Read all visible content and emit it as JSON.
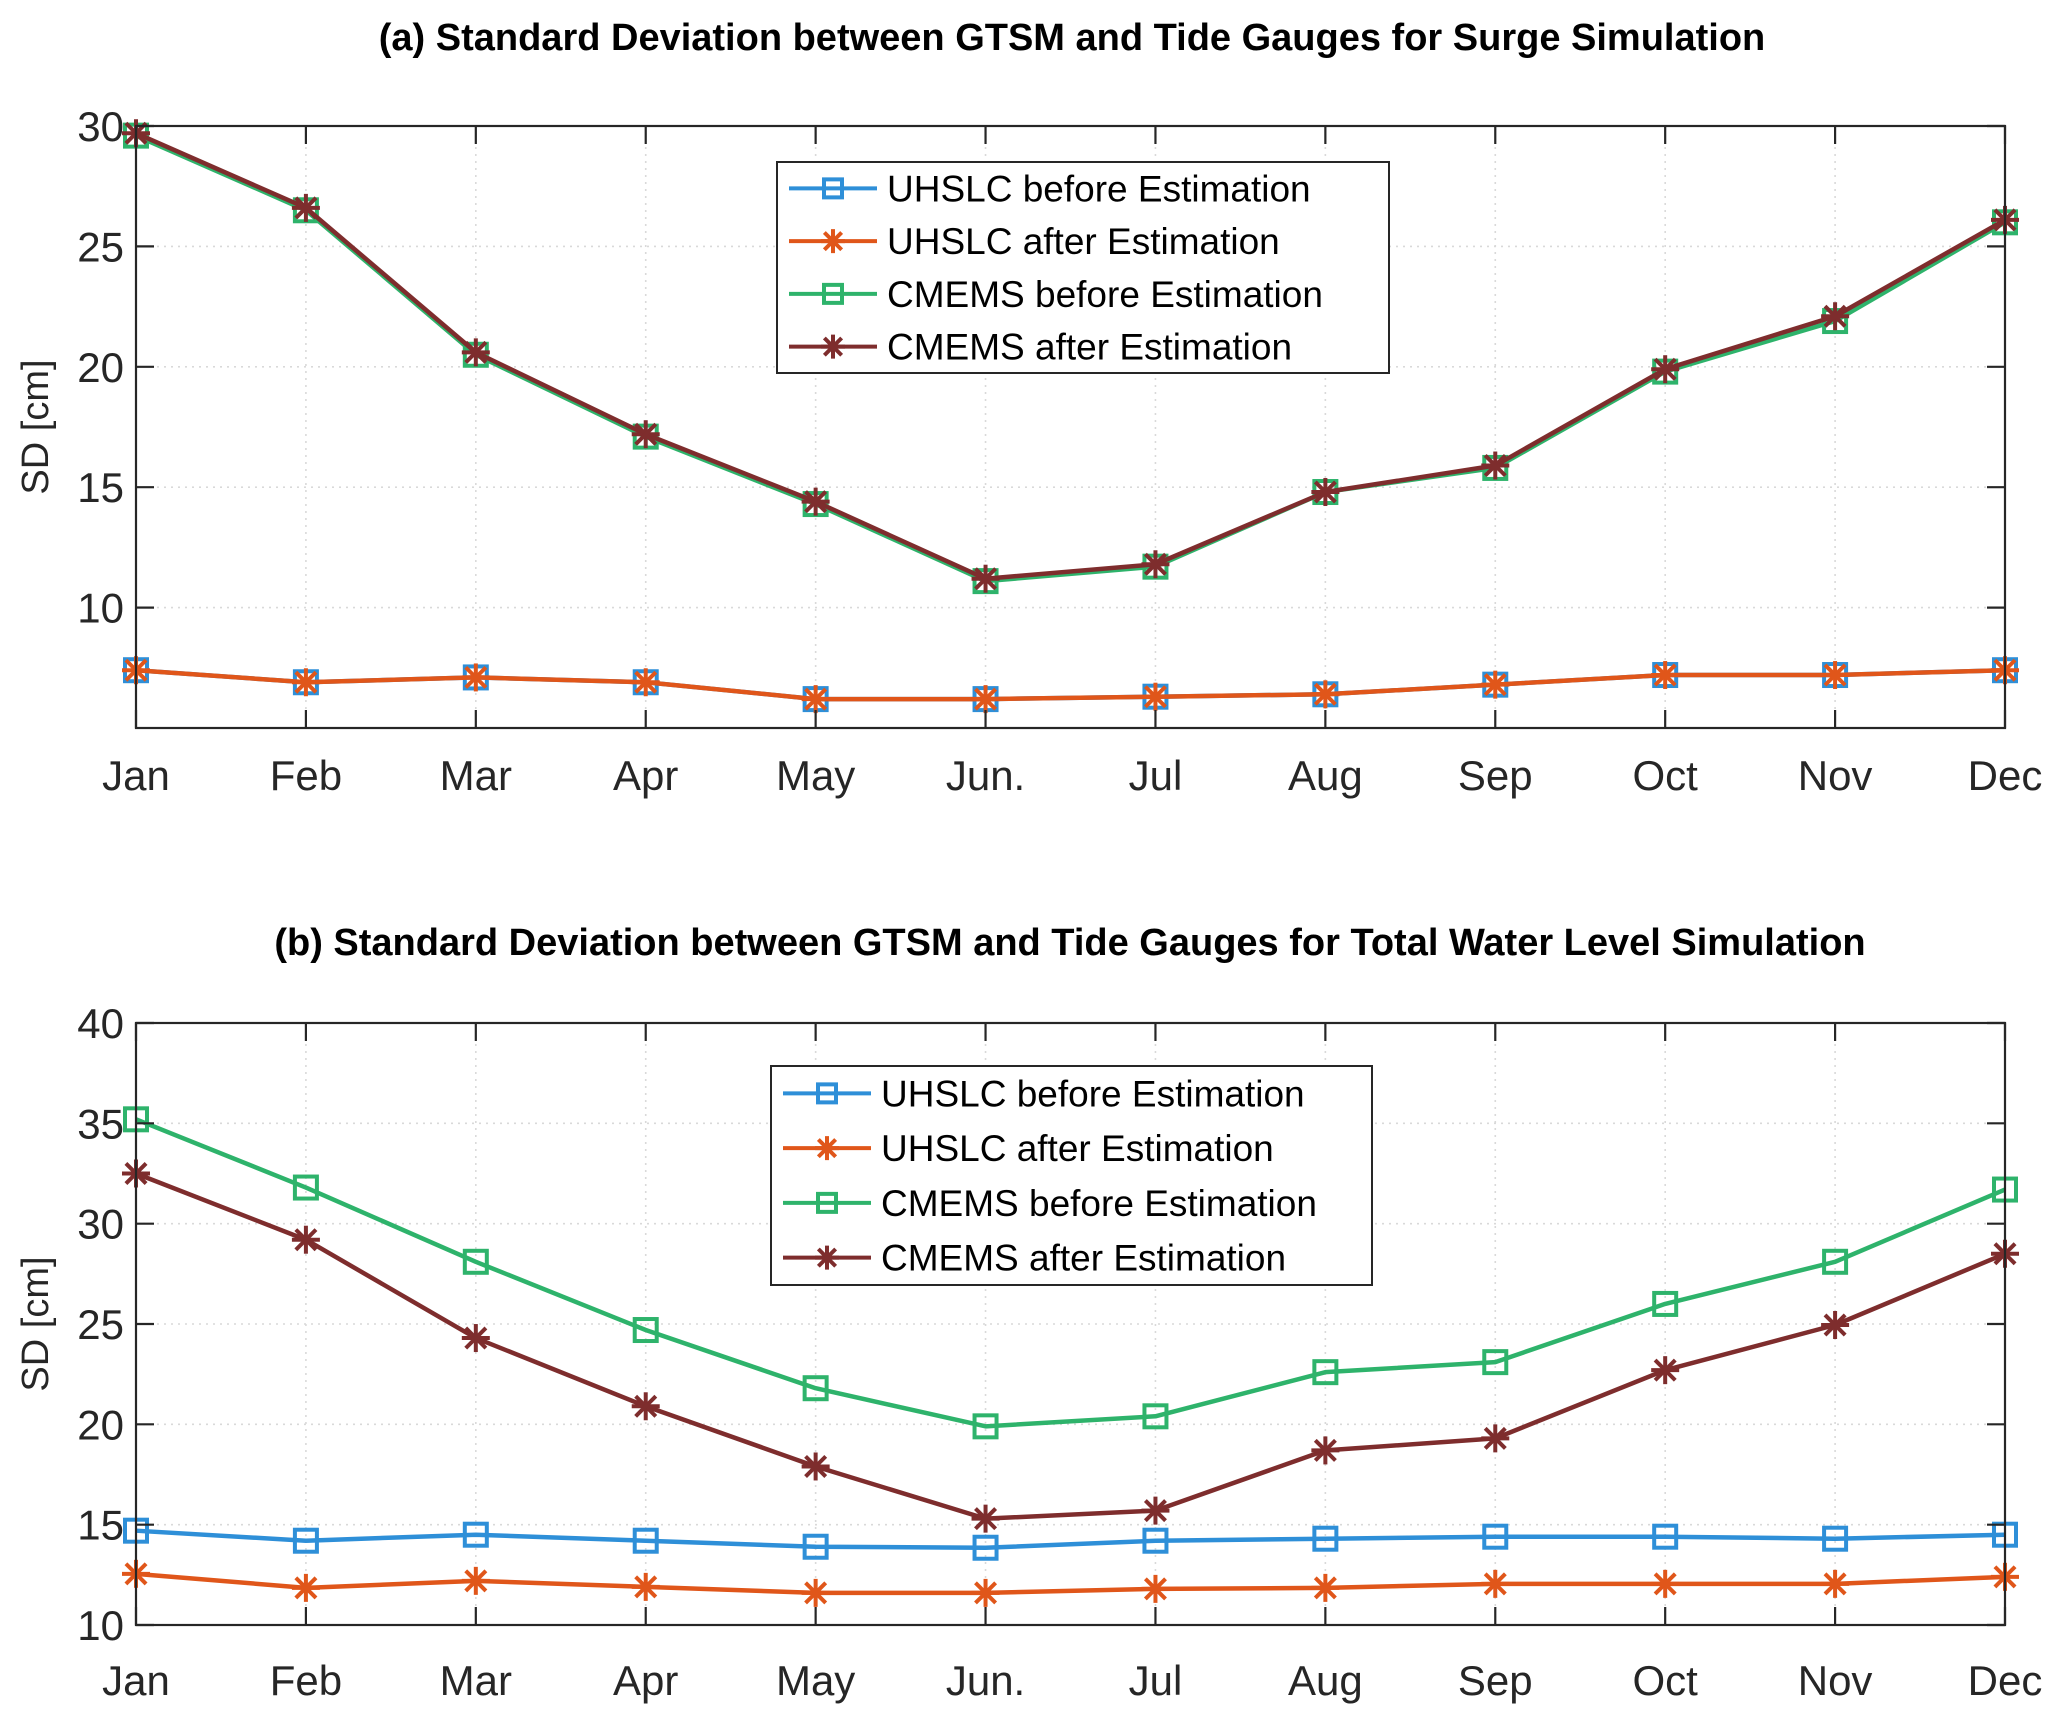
{
  "chart_data": [
    {
      "type": "line",
      "title": "(a) Standard Deviation between GTSM and Tide Gauges for Surge Simulation",
      "xlabel": "",
      "ylabel": "SD [cm]",
      "categories": [
        "Jan",
        "Feb",
        "Mar",
        "Apr",
        "May",
        "Jun.",
        "Jul",
        "Aug",
        "Sep",
        "Oct",
        "Nov",
        "Dec"
      ],
      "ylim": [
        5,
        30
      ],
      "yticks": [
        10,
        15,
        20,
        25,
        30
      ],
      "grid": true,
      "legend_position": "top-center",
      "series": [
        {
          "name": "UHSLC before Estimation",
          "color": "#2e8fd8",
          "marker": "square",
          "values": [
            7.4,
            6.9,
            7.1,
            6.9,
            6.2,
            6.2,
            6.3,
            6.4,
            6.8,
            7.2,
            7.2,
            7.4
          ]
        },
        {
          "name": "UHSLC after Estimation",
          "color": "#e0561a",
          "marker": "asterisk",
          "values": [
            7.4,
            6.9,
            7.1,
            6.9,
            6.2,
            6.2,
            6.3,
            6.4,
            6.8,
            7.2,
            7.2,
            7.4
          ]
        },
        {
          "name": "CMEMS before Estimation",
          "color": "#2eb36b",
          "marker": "square",
          "values": [
            29.6,
            26.5,
            20.5,
            17.1,
            14.3,
            11.1,
            11.7,
            14.8,
            15.8,
            19.8,
            21.9,
            26.0
          ]
        },
        {
          "name": "CMEMS after Estimation",
          "color": "#7e2d2d",
          "marker": "asterisk",
          "values": [
            29.7,
            26.6,
            20.6,
            17.2,
            14.4,
            11.2,
            11.8,
            14.8,
            15.9,
            19.9,
            22.1,
            26.1
          ]
        }
      ]
    },
    {
      "type": "line",
      "title": "(b) Standard Deviation between GTSM and Tide Gauges for Total Water Level Simulation",
      "xlabel": "",
      "ylabel": "SD [cm]",
      "categories": [
        "Jan",
        "Feb",
        "Mar",
        "Apr",
        "May",
        "Jun.",
        "Jul",
        "Aug",
        "Sep",
        "Oct",
        "Nov",
        "Dec"
      ],
      "ylim": [
        10,
        40
      ],
      "yticks": [
        10,
        15,
        20,
        25,
        30,
        35,
        40
      ],
      "grid": true,
      "legend_position": "top-center",
      "series": [
        {
          "name": "UHSLC before Estimation",
          "color": "#2e8fd8",
          "marker": "square",
          "values": [
            14.7,
            14.2,
            14.5,
            14.2,
            13.9,
            13.85,
            14.2,
            14.3,
            14.4,
            14.4,
            14.3,
            14.5
          ]
        },
        {
          "name": "UHSLC after Estimation",
          "color": "#e0561a",
          "marker": "asterisk",
          "values": [
            12.55,
            11.85,
            12.2,
            11.9,
            11.6,
            11.6,
            11.8,
            11.85,
            12.05,
            12.05,
            12.05,
            12.4
          ]
        },
        {
          "name": "CMEMS before Estimation",
          "color": "#2eb36b",
          "marker": "square",
          "values": [
            35.2,
            31.8,
            28.1,
            24.7,
            21.8,
            19.9,
            20.4,
            22.6,
            23.1,
            26.0,
            28.1,
            31.7
          ]
        },
        {
          "name": "CMEMS after Estimation",
          "color": "#7e2d2d",
          "marker": "asterisk",
          "values": [
            32.5,
            29.2,
            24.3,
            20.9,
            17.9,
            15.3,
            15.7,
            18.7,
            19.3,
            22.7,
            24.95,
            28.5
          ]
        }
      ]
    }
  ]
}
